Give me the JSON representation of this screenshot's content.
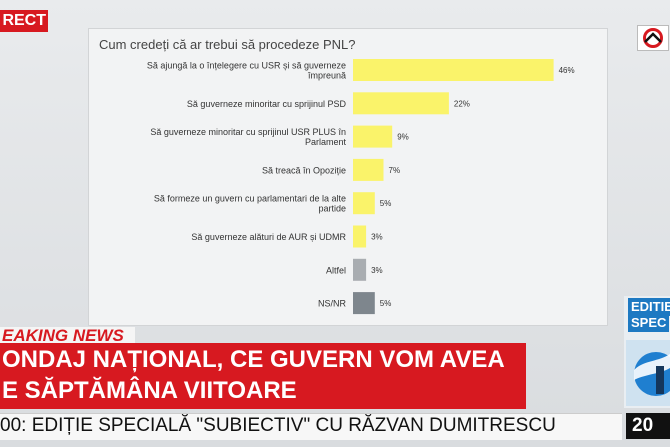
{
  "live_label": "RECT",
  "question": "Cum credeți că ar trebui să procedeze PNL?",
  "chart_data": {
    "type": "bar",
    "orientation": "horizontal",
    "title": "Cum credeți că ar trebui să procedeze PNL?",
    "categories": [
      "Să ajungă la o înțelegere cu USR și să guverneze împreună",
      "Să guverneze minoritar cu sprijinul PSD",
      "Să guverneze minoritar cu sprijinul USR PLUS în Parlament",
      "Să treacă în Opoziție",
      "Să formeze un guvern cu parlamentari de la alte partide",
      "Să guverneze alături de AUR și UDMR",
      "Altfel",
      "NS/NR"
    ],
    "category_lines": [
      [
        "Să ajungă la o înțelegere cu USR și să guverneze",
        "împreună"
      ],
      [
        "Să guverneze minoritar cu sprijinul PSD"
      ],
      [
        "Să guverneze minoritar cu sprijinul USR PLUS în",
        "Parlament"
      ],
      [
        "Să treacă în Opoziție"
      ],
      [
        "Să formeze un guvern cu parlamentari de la alte",
        "partide"
      ],
      [
        "Să guverneze alături de AUR și UDMR"
      ],
      [
        "Altfel"
      ],
      [
        "NS/NR"
      ]
    ],
    "values": [
      46,
      22,
      9,
      7,
      5,
      3,
      3,
      5
    ],
    "value_labels": [
      "46%",
      "22%",
      "9%",
      "7%",
      "5%",
      "3%",
      "3%",
      "5%"
    ],
    "colors": [
      "#faf36a",
      "#faf36a",
      "#faf36a",
      "#faf36a",
      "#faf36a",
      "#faf36a",
      "#a9adb1",
      "#7e868d"
    ],
    "xlim": [
      0,
      50
    ],
    "grid": false,
    "legend": "none"
  },
  "breaking_label": "EAKING NEWS",
  "headline": {
    "line1": "ONDAJ NAȚIONAL, CE GUVERN VOM AVEA",
    "line2": "E SĂPTĂMÂNA VIITOARE"
  },
  "ticker": "00: EDIȚIE SPECIALĂ \"SUBIECTIV\" CU RĂZVAN DUMITRESCU",
  "promo": {
    "title": "EDITIE",
    "subtitle": "SPEC"
  },
  "clock": "20",
  "icons": {
    "logo": "antena3-logo-icon",
    "promo": "globe-art-icon"
  }
}
